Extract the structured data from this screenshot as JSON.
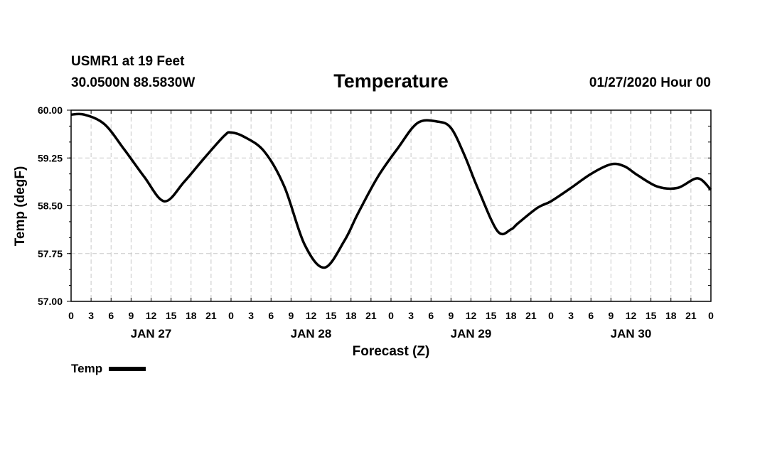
{
  "header": {
    "station": "USMR1 at 19 Feet",
    "coords": "30.0500N 88.5830W",
    "title": "Temperature",
    "datetime": "01/27/2020 Hour 00"
  },
  "legend": {
    "label": "Temp"
  },
  "colors": {
    "line": "#000000",
    "grid": "#c8c8c8",
    "frame": "#000000"
  },
  "chart_data": {
    "type": "line",
    "title": "Temperature",
    "xlabel": "Forecast (Z)",
    "ylabel": "Temp (degF)",
    "x_unit": "hours since 01/27/2020 00Z",
    "xlim": [
      0,
      96
    ],
    "ylim": [
      57.0,
      60.0
    ],
    "yticks": [
      57.0,
      57.75,
      58.5,
      59.25,
      60.0
    ],
    "ytick_labels": [
      "57.00",
      "57.75",
      "58.50",
      "59.25",
      "60.00"
    ],
    "xticks": [
      0,
      3,
      6,
      9,
      12,
      15,
      18,
      21,
      24,
      27,
      30,
      33,
      36,
      39,
      42,
      45,
      48,
      51,
      54,
      57,
      60,
      63,
      66,
      69,
      72,
      75,
      78,
      81,
      84,
      87,
      90,
      93,
      96
    ],
    "xtick_labels": [
      "0",
      "3",
      "6",
      "9",
      "12",
      "15",
      "18",
      "21",
      "0",
      "3",
      "6",
      "9",
      "12",
      "15",
      "18",
      "21",
      "0",
      "3",
      "6",
      "9",
      "12",
      "15",
      "18",
      "21",
      "0",
      "3",
      "6",
      "9",
      "12",
      "15",
      "18",
      "21",
      "0"
    ],
    "date_labels": [
      {
        "x": 12,
        "label": "JAN 27"
      },
      {
        "x": 36,
        "label": "JAN 28"
      },
      {
        "x": 60,
        "label": "JAN 29"
      },
      {
        "x": 84,
        "label": "JAN 30"
      }
    ],
    "grid": true,
    "legend_position": "bottom-left",
    "series": [
      {
        "name": "Temp",
        "x": [
          0,
          2,
          5,
          8,
          11,
          14,
          17,
          20,
          23,
          24,
          26,
          29,
          32,
          35,
          38,
          41,
          43,
          46,
          49,
          52,
          55,
          57,
          59,
          61,
          64,
          66,
          67,
          70,
          72,
          75,
          78,
          81,
          83,
          85,
          88,
          91,
          94,
          96
        ],
        "y": [
          59.93,
          59.93,
          59.78,
          59.38,
          58.95,
          58.57,
          58.88,
          59.25,
          59.6,
          59.65,
          59.58,
          59.35,
          58.8,
          57.9,
          57.53,
          57.95,
          58.37,
          58.95,
          59.4,
          59.8,
          59.82,
          59.72,
          59.3,
          58.78,
          58.1,
          58.13,
          58.22,
          58.47,
          58.57,
          58.78,
          59.0,
          59.15,
          59.12,
          58.98,
          58.8,
          58.78,
          58.93,
          58.75
        ]
      }
    ]
  }
}
